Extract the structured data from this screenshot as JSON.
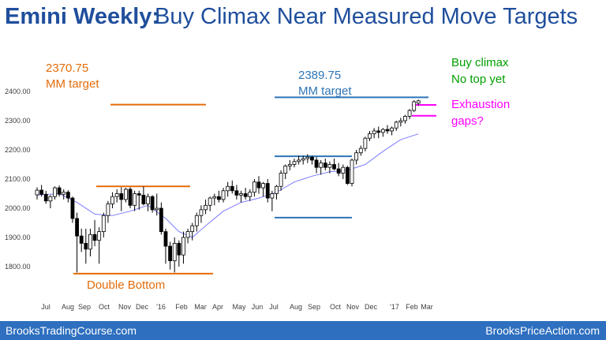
{
  "slide": {
    "title_bold": "Emini Weekly:",
    "title_rest": "Buy Climax Near Measured Move Targets",
    "footer_left": "BrooksTradingCourse.com",
    "footer_right": "BrooksPriceAction.com"
  },
  "colors": {
    "title": "#1f4e9c",
    "orange": "#e46c0a",
    "blue": "#2e75b6",
    "green": "#00a000",
    "magenta": "#ff00ff",
    "ma_line": "#7b7bff",
    "footer_bg": "#2e6fbf"
  },
  "chart_data": {
    "type": "candlestick",
    "y_ticks": [
      "1800.00",
      "1900.00",
      "2000.00",
      "2100.00",
      "2200.00",
      "2300.00",
      "2400.00"
    ],
    "ylim": [
      1750,
      2400
    ],
    "x_labels": [
      "Jul",
      "Aug",
      "Sep",
      "Oct",
      "Nov",
      "Dec",
      "'16",
      "Feb",
      "Mar",
      "Apr",
      "May",
      "Jun",
      "Jul",
      "Aug",
      "Sep",
      "Oct",
      "Nov",
      "Dec",
      "'17",
      "Feb",
      "Mar"
    ],
    "bars": [
      [
        2046,
        2072,
        2030,
        2062
      ],
      [
        2062,
        2080,
        2040,
        2048
      ],
      [
        2048,
        2060,
        2015,
        2025
      ],
      [
        2025,
        2045,
        2000,
        2040
      ],
      [
        2040,
        2075,
        2030,
        2070
      ],
      [
        2070,
        2078,
        2040,
        2048
      ],
      [
        2048,
        2065,
        2030,
        2055
      ],
      [
        2055,
        2062,
        2020,
        2035
      ],
      [
        2035,
        2040,
        1950,
        1965
      ],
      [
        1965,
        1985,
        1780,
        1905
      ],
      [
        1905,
        1930,
        1850,
        1880
      ],
      [
        1880,
        1930,
        1810,
        1860
      ],
      [
        1860,
        1930,
        1835,
        1910
      ],
      [
        1910,
        1960,
        1870,
        1890
      ],
      [
        1890,
        1935,
        1810,
        1920
      ],
      [
        1920,
        1985,
        1900,
        1975
      ],
      [
        1975,
        2025,
        1950,
        2015
      ],
      [
        2015,
        2055,
        2000,
        2040
      ],
      [
        2040,
        2065,
        2020,
        2050
      ],
      [
        2050,
        2072,
        1990,
        2030
      ],
      [
        2030,
        2070,
        2020,
        2065
      ],
      [
        2065,
        2072,
        2000,
        2010
      ],
      [
        2010,
        2060,
        1990,
        2050
      ],
      [
        2050,
        2060,
        1995,
        2045
      ],
      [
        2045,
        2075,
        2010,
        2015
      ],
      [
        2015,
        2050,
        1990,
        2040
      ],
      [
        2040,
        2045,
        1985,
        1995
      ],
      [
        1995,
        2050,
        1975,
        2000
      ],
      [
        2000,
        2020,
        1910,
        1920
      ],
      [
        1920,
        1930,
        1810,
        1870
      ],
      [
        1870,
        1885,
        1790,
        1820
      ],
      [
        1820,
        1900,
        1780,
        1880
      ],
      [
        1880,
        1890,
        1800,
        1840
      ],
      [
        1840,
        1920,
        1810,
        1900
      ],
      [
        1900,
        1930,
        1880,
        1920
      ],
      [
        1920,
        1950,
        1890,
        1940
      ],
      [
        1940,
        1985,
        1920,
        1975
      ],
      [
        1975,
        2010,
        1950,
        1995
      ],
      [
        1995,
        2030,
        1980,
        2010
      ],
      [
        2010,
        2040,
        1990,
        2035
      ],
      [
        2035,
        2050,
        2010,
        2040
      ],
      [
        2040,
        2060,
        2020,
        2030
      ],
      [
        2030,
        2070,
        2020,
        2060
      ],
      [
        2060,
        2090,
        2040,
        2075
      ],
      [
        2075,
        2095,
        2050,
        2060
      ],
      [
        2060,
        2080,
        2030,
        2045
      ],
      [
        2045,
        2060,
        2020,
        2050
      ],
      [
        2050,
        2070,
        2030,
        2040
      ],
      [
        2040,
        2065,
        2025,
        2055
      ],
      [
        2055,
        2100,
        2040,
        2090
      ],
      [
        2090,
        2110,
        2050,
        2070
      ],
      [
        2070,
        2090,
        2040,
        2085
      ],
      [
        2085,
        2100,
        2020,
        2035
      ],
      [
        2035,
        2060,
        1990,
        2050
      ],
      [
        2050,
        2080,
        2030,
        2075
      ],
      [
        2075,
        2130,
        2060,
        2120
      ],
      [
        2120,
        2150,
        2100,
        2145
      ],
      [
        2145,
        2165,
        2130,
        2150
      ],
      [
        2150,
        2170,
        2140,
        2160
      ],
      [
        2160,
        2180,
        2150,
        2165
      ],
      [
        2165,
        2180,
        2150,
        2170
      ],
      [
        2170,
        2185,
        2155,
        2175
      ],
      [
        2175,
        2180,
        2150,
        2165
      ],
      [
        2165,
        2175,
        2120,
        2140
      ],
      [
        2140,
        2165,
        2115,
        2155
      ],
      [
        2155,
        2170,
        2130,
        2140
      ],
      [
        2140,
        2160,
        2120,
        2150
      ],
      [
        2150,
        2170,
        2130,
        2135
      ],
      [
        2135,
        2155,
        2110,
        2120
      ],
      [
        2120,
        2150,
        2100,
        2140
      ],
      [
        2140,
        2145,
        2080,
        2085
      ],
      [
        2085,
        2170,
        2075,
        2165
      ],
      [
        2165,
        2200,
        2150,
        2190
      ],
      [
        2190,
        2215,
        2180,
        2205
      ],
      [
        2205,
        2245,
        2195,
        2240
      ],
      [
        2240,
        2265,
        2230,
        2255
      ],
      [
        2255,
        2275,
        2240,
        2265
      ],
      [
        2265,
        2280,
        2240,
        2260
      ],
      [
        2260,
        2275,
        2245,
        2270
      ],
      [
        2270,
        2285,
        2255,
        2265
      ],
      [
        2265,
        2280,
        2250,
        2275
      ],
      [
        2275,
        2300,
        2265,
        2295
      ],
      [
        2295,
        2310,
        2280,
        2300
      ],
      [
        2300,
        2320,
        2290,
        2315
      ],
      [
        2315,
        2340,
        2305,
        2335
      ],
      [
        2335,
        2370,
        2330,
        2365
      ],
      [
        2360,
        2372,
        2352,
        2368
      ]
    ],
    "moving_average": [
      [
        0,
        2045
      ],
      [
        5,
        2050
      ],
      [
        9,
        2020
      ],
      [
        13,
        1980
      ],
      [
        17,
        1975
      ],
      [
        21,
        1990
      ],
      [
        25,
        2010
      ],
      [
        29,
        1965
      ],
      [
        32,
        1920
      ],
      [
        35,
        1900
      ],
      [
        38,
        1940
      ],
      [
        42,
        1990
      ],
      [
        46,
        2020
      ],
      [
        50,
        2035
      ],
      [
        54,
        2055
      ],
      [
        58,
        2090
      ],
      [
        62,
        2110
      ],
      [
        66,
        2125
      ],
      [
        70,
        2130
      ],
      [
        74,
        2150
      ],
      [
        78,
        2195
      ],
      [
        82,
        2235
      ],
      [
        86,
        2255
      ]
    ],
    "annotations": {
      "mm_target_left_value": "2370.75",
      "mm_target_left_label": "MM target",
      "mm_target_right_value": "2389.75",
      "mm_target_right_label": "MM target",
      "buy_climax_line1": "Buy climax",
      "buy_climax_line2": "No top yet",
      "exhaustion_line1": "Exhaustion",
      "exhaustion_line2": "gaps?",
      "double_bottom": "Double Bottom"
    },
    "levels": {
      "orange_target": 2355,
      "orange_range_top": 2075,
      "double_bottom": 1776,
      "blue_target": 2380,
      "blue_range_top": 2178,
      "blue_range_bottom": 1968,
      "magenta_top": 2354,
      "magenta_bottom": 2317
    }
  }
}
